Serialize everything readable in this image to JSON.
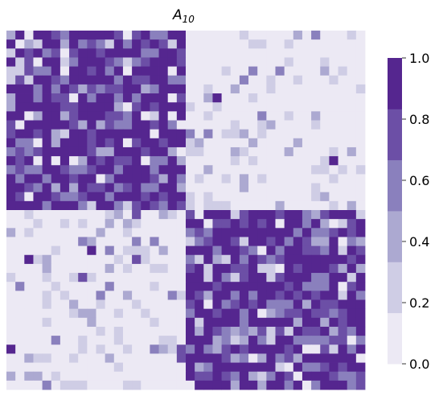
{
  "chart_data": {
    "type": "heatmap",
    "title": "A",
    "title_subscript": "10",
    "rows": 40,
    "cols": 40,
    "blocks": [
      {
        "rows": [
          0,
          19
        ],
        "cols": [
          0,
          19
        ],
        "density": "high"
      },
      {
        "rows": [
          20,
          39
        ],
        "cols": [
          20,
          39
        ],
        "density": "high"
      },
      {
        "rows": [
          0,
          19
        ],
        "cols": [
          20,
          39
        ],
        "density": "low"
      },
      {
        "rows": [
          20,
          39
        ],
        "cols": [
          0,
          19
        ],
        "density": "low"
      }
    ],
    "value_range": [
      0,
      1
    ],
    "colorbar": {
      "levels": [
        0.0,
        0.2,
        0.4,
        0.6,
        0.8,
        1.0
      ],
      "ticks": [
        "0.0",
        "0.2",
        "0.4",
        "0.6",
        "0.8",
        "1.0"
      ],
      "colors": [
        "#ece9f4",
        "#cfcde5",
        "#aca9d1",
        "#8a80bd",
        "#6c4fa6",
        "#55268f"
      ]
    },
    "xlabel": "",
    "ylabel": "",
    "grid": false
  }
}
